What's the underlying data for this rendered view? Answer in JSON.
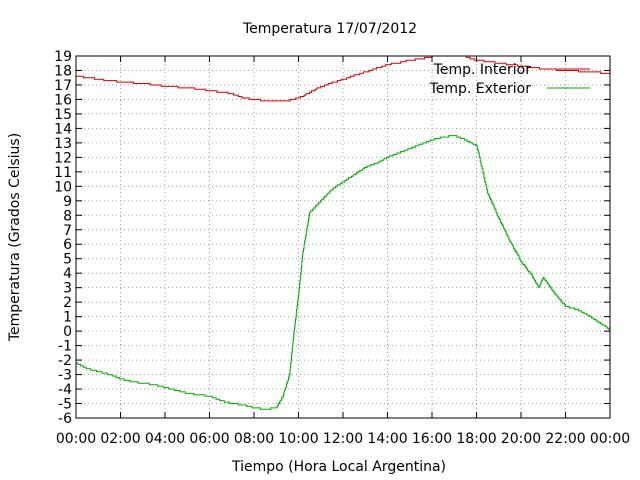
{
  "chart_data": {
    "type": "line",
    "title": "Temperatura 17/07/2012",
    "xlabel": "Tiempo (Hora Local Argentina)",
    "ylabel": "Temperatura (Grados Celsius)",
    "xlim": [
      0,
      24
    ],
    "ylim": [
      -6,
      19
    ],
    "x_tick_labels": [
      "00:00",
      "02:00",
      "04:00",
      "06:00",
      "08:00",
      "10:00",
      "12:00",
      "14:00",
      "16:00",
      "18:00",
      "20:00",
      "22:00",
      "00:00"
    ],
    "y_ticks": [
      -6,
      -5,
      -4,
      -3,
      -2,
      -1,
      0,
      1,
      2,
      3,
      4,
      5,
      6,
      7,
      8,
      9,
      10,
      11,
      12,
      13,
      14,
      15,
      16,
      17,
      18,
      19
    ],
    "grid": true,
    "legend_position": "top-right",
    "series": [
      {
        "name": "Temp. Interior",
        "color": "#cc0000",
        "x": [
          0,
          1,
          2,
          3,
          4,
          5,
          6,
          7,
          7.5,
          8,
          8.5,
          9,
          9.5,
          10,
          11,
          12,
          13,
          14,
          15,
          16,
          16.5,
          17,
          17.5,
          18,
          19,
          20,
          21,
          22,
          23,
          24
        ],
        "y": [
          17.6,
          17.4,
          17.2,
          17.1,
          16.9,
          16.8,
          16.6,
          16.4,
          16.1,
          16.0,
          15.9,
          15.85,
          15.9,
          16.1,
          16.9,
          17.4,
          17.9,
          18.4,
          18.7,
          18.95,
          19.0,
          19.0,
          18.95,
          18.7,
          18.5,
          18.3,
          18.1,
          18.0,
          17.9,
          17.8
        ]
      },
      {
        "name": "Temp. Exterior",
        "color": "#00aa00",
        "x": [
          0,
          0.5,
          1,
          1.5,
          2,
          2.5,
          3,
          3.5,
          4,
          4.5,
          5,
          5.5,
          6,
          6.5,
          7,
          7.5,
          8,
          8.5,
          9,
          9.3,
          9.6,
          9.8,
          10,
          10.2,
          10.5,
          11,
          11.5,
          12,
          12.5,
          13,
          13.5,
          14,
          14.5,
          15,
          15.5,
          16,
          16.5,
          17,
          17.5,
          18,
          18.5,
          19,
          19.5,
          20,
          20.5,
          20.8,
          21,
          21.2,
          21.5,
          22,
          22.5,
          23,
          23.5,
          24
        ],
        "y": [
          -2.2,
          -2.6,
          -2.8,
          -3.0,
          -3.3,
          -3.5,
          -3.6,
          -3.7,
          -3.9,
          -4.1,
          -4.3,
          -4.4,
          -4.5,
          -4.8,
          -5.0,
          -5.1,
          -5.3,
          -5.4,
          -5.3,
          -4.5,
          -3.0,
          0.0,
          2.5,
          5.5,
          8.2,
          9.0,
          9.8,
          10.3,
          10.8,
          11.3,
          11.6,
          12.0,
          12.3,
          12.6,
          12.9,
          13.2,
          13.4,
          13.5,
          13.2,
          12.8,
          9.5,
          7.8,
          6.2,
          4.8,
          3.8,
          3.0,
          3.7,
          3.3,
          2.6,
          1.7,
          1.5,
          1.1,
          0.6,
          0.1
        ]
      }
    ]
  }
}
